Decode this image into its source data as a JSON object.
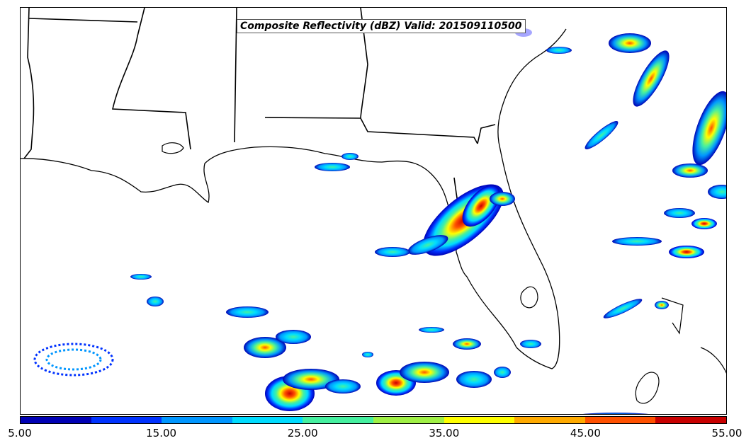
{
  "map": {
    "title": "Composite Reflectivity (dBZ) Valid: 201509110500"
  },
  "colorbar": {
    "colors": [
      "#0000b4",
      "#0032ff",
      "#0096ff",
      "#00dcff",
      "#46f0a0",
      "#a0f046",
      "#ffff00",
      "#ffaa00",
      "#ff5000",
      "#c80000"
    ],
    "tick_labels": [
      "5.00",
      "15.00",
      "25.00",
      "35.00",
      "45.00",
      "55.00"
    ],
    "min": 5,
    "max": 55
  }
}
